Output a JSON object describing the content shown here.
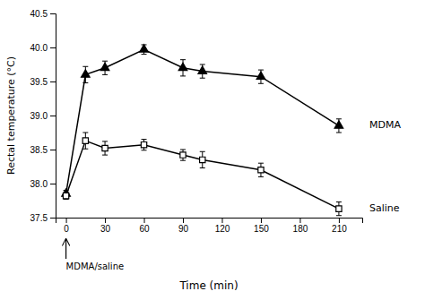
{
  "chart_data": {
    "type": "line",
    "x": [
      0,
      15,
      30,
      60,
      90,
      105,
      150,
      210
    ],
    "series": [
      {
        "name": "MDMA",
        "color": "#000000",
        "marker": "triangle",
        "values": [
          37.85,
          39.6,
          39.7,
          39.97,
          39.7,
          39.65,
          39.57,
          38.85
        ],
        "errors": [
          0.05,
          0.12,
          0.1,
          0.07,
          0.12,
          0.1,
          0.1,
          0.1
        ]
      },
      {
        "name": "Saline",
        "color": "#000000",
        "marker": "square-open",
        "values": [
          37.82,
          38.63,
          38.52,
          38.57,
          38.42,
          38.35,
          38.2,
          37.63
        ],
        "errors": [
          0.05,
          0.12,
          0.1,
          0.08,
          0.08,
          0.12,
          0.1,
          0.1
        ]
      }
    ],
    "xlabel": "Time (min)",
    "ylabel": "Rectal temperature (°C)",
    "xlim": [
      -8,
      228
    ],
    "ylim": [
      37.5,
      40.5
    ],
    "xticks": [
      0,
      30,
      60,
      90,
      120,
      150,
      180,
      210
    ],
    "yticks": [
      37.5,
      {
        "value": 38,
        "label": "38.0"
      },
      38.5,
      {
        "value": 39,
        "label": "39.0"
      },
      39.5,
      {
        "value": 40,
        "label": "40.0"
      },
      40.5
    ],
    "annotations": [
      {
        "text": "MDMA/saline",
        "x": 0
      }
    ],
    "legend": "right"
  }
}
